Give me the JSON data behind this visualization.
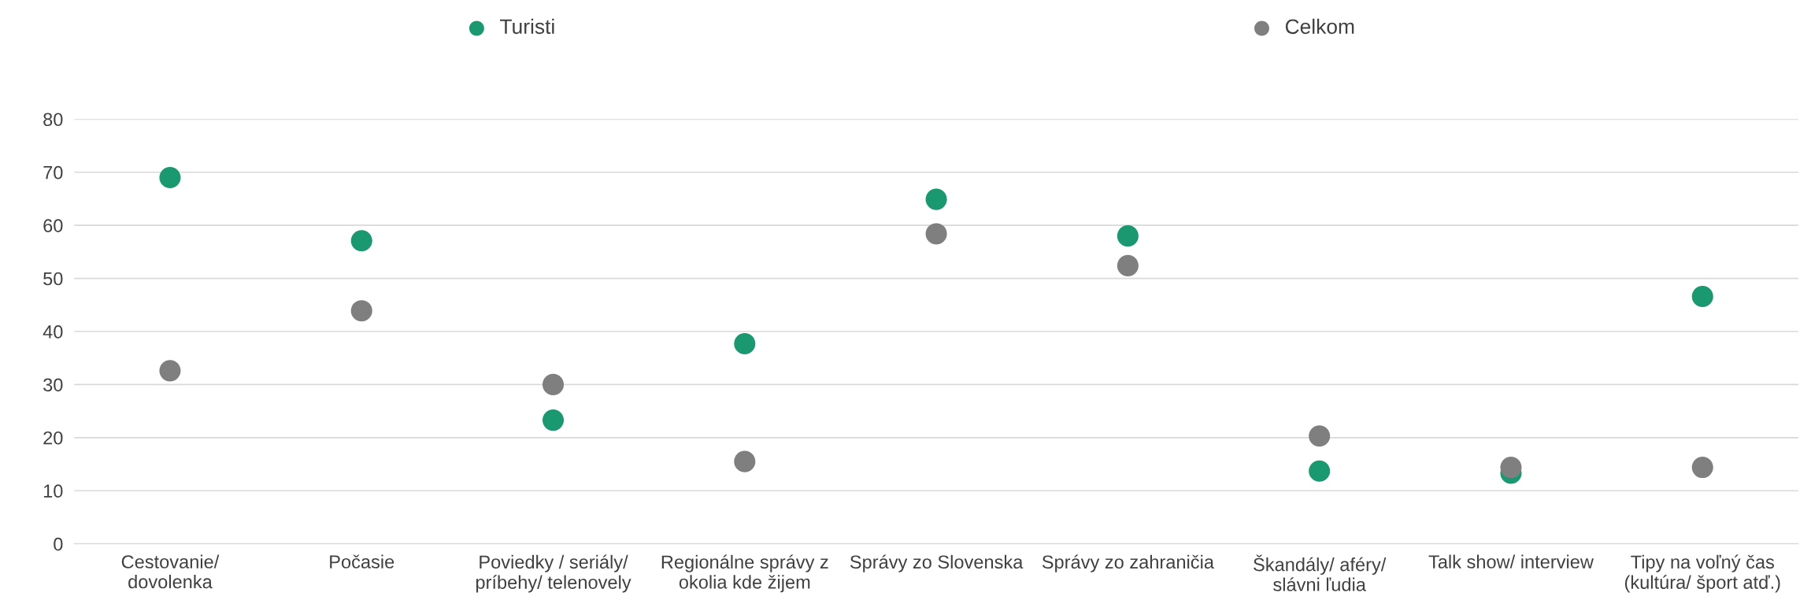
{
  "chart_data": {
    "type": "scatter",
    "categories": [
      "Cestovanie/\ndovolenka",
      "Počasie",
      "Poviedky / seriály/\npríbehy/ telenovely",
      "Regionálne správy z\nokolia kde žijem",
      "Správy zo Slovenska",
      "Správy zo zahraničia",
      "Škandály/ aféry/\nslávni ľudia",
      "Talk show/ interview",
      "Tipy na voľný čas\n(kultúra/ šport atď.)"
    ],
    "series": [
      {
        "name": "Turisti",
        "color": "#1a9970",
        "values": [
          69,
          57.1,
          23.3,
          37.7,
          64.9,
          58,
          13.7,
          13.3,
          46.6
        ]
      },
      {
        "name": "Celkom",
        "color": "#7f7f7f",
        "values": [
          32.6,
          43.9,
          30,
          15.5,
          58.4,
          52.4,
          20.3,
          14.4,
          14.4
        ]
      }
    ],
    "ylim": [
      0,
      80
    ],
    "yticks": [
      0,
      10,
      20,
      30,
      40,
      50,
      60,
      70,
      80
    ],
    "grid": "y",
    "legend": "top",
    "marker": "circle"
  }
}
